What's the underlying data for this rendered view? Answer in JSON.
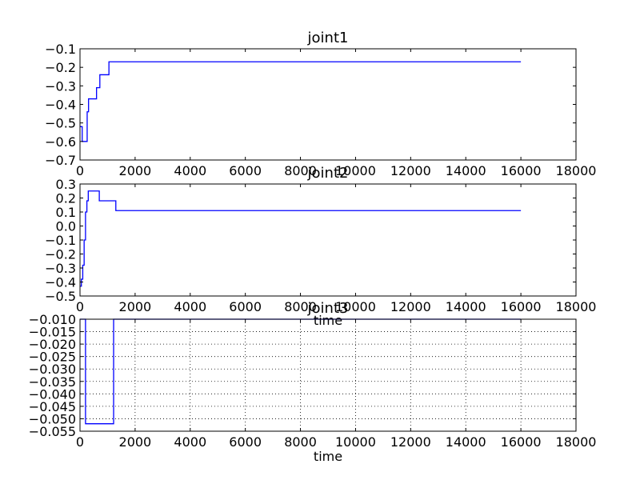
{
  "chart_data": [
    {
      "type": "line",
      "title": "joint1",
      "xlabel": "",
      "ylabel": "",
      "xlim": [
        0,
        18000
      ],
      "ylim": [
        -0.7,
        -0.1
      ],
      "xticks": [
        0,
        2000,
        4000,
        6000,
        8000,
        10000,
        12000,
        14000,
        16000,
        18000
      ],
      "xtick_labels": [
        "0",
        "2000",
        "4000",
        "6000",
        "8000",
        "10000",
        "12000",
        "14000",
        "16000",
        "18000"
      ],
      "yticks": [
        -0.1,
        -0.2,
        -0.3,
        -0.4,
        -0.5,
        -0.6,
        -0.7
      ],
      "ytick_labels": [
        "−0.1",
        "−0.2",
        "−0.3",
        "−0.4",
        "−0.5",
        "−0.6",
        "−0.7"
      ],
      "grid": false,
      "color": "#0000ff",
      "series": [
        {
          "step": "post",
          "x": [
            0,
            80,
            160,
            260,
            310,
            600,
            720,
            1050,
            16000
          ],
          "y": [
            -0.52,
            -0.6,
            -0.6,
            -0.44,
            -0.37,
            -0.31,
            -0.24,
            -0.17,
            -0.17
          ]
        }
      ]
    },
    {
      "type": "line",
      "title": "joint2",
      "xlabel": "time",
      "ylabel": "",
      "xlim": [
        0,
        18000
      ],
      "ylim": [
        -0.5,
        0.3
      ],
      "xticks": [
        0,
        2000,
        4000,
        6000,
        8000,
        10000,
        12000,
        14000,
        16000,
        18000
      ],
      "xtick_labels": [
        "0",
        "2000",
        "4000",
        "6000",
        "8000",
        "10000",
        "12000",
        "14000",
        "16000",
        "18000"
      ],
      "yticks": [
        0.3,
        0.2,
        0.1,
        0.0,
        -0.1,
        -0.2,
        -0.3,
        -0.4,
        -0.5
      ],
      "ytick_labels": [
        "0.3",
        "0.2",
        "0.1",
        "0.0",
        "−0.1",
        "−0.2",
        "−0.3",
        "−0.4",
        "−0.5"
      ],
      "grid": false,
      "color": "#0000ff",
      "series": [
        {
          "step": "post",
          "x": [
            0,
            50,
            100,
            150,
            200,
            250,
            300,
            700,
            1300,
            16000
          ],
          "y": [
            -0.43,
            -0.38,
            -0.28,
            -0.1,
            0.1,
            0.18,
            0.25,
            0.18,
            0.11,
            0.11
          ]
        }
      ]
    },
    {
      "type": "line",
      "title": "joint3",
      "xlabel": "time",
      "ylabel": "",
      "xlim": [
        0,
        18000
      ],
      "ylim": [
        -0.055,
        -0.01
      ],
      "xticks": [
        0,
        2000,
        4000,
        6000,
        8000,
        10000,
        12000,
        14000,
        16000,
        18000
      ],
      "xtick_labels": [
        "0",
        "2000",
        "4000",
        "6000",
        "8000",
        "10000",
        "12000",
        "14000",
        "16000",
        "18000"
      ],
      "yticks": [
        -0.01,
        -0.015,
        -0.02,
        -0.025,
        -0.03,
        -0.035,
        -0.04,
        -0.045,
        -0.05,
        -0.055
      ],
      "ytick_labels": [
        "−0.010",
        "−0.015",
        "−0.020",
        "−0.025",
        "−0.030",
        "−0.035",
        "−0.040",
        "−0.045",
        "−0.050",
        "−0.055"
      ],
      "grid": true,
      "color": "#0000ff",
      "series": [
        {
          "step": "post",
          "x": [
            0,
            200,
            1220,
            16000
          ],
          "y": [
            -0.01,
            -0.052,
            -0.01,
            -0.01
          ]
        }
      ]
    }
  ]
}
